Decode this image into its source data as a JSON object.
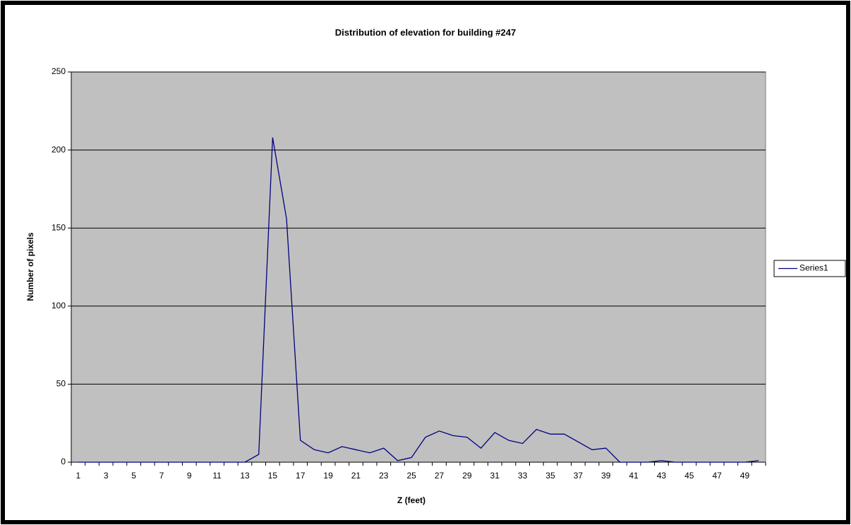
{
  "chart_data": {
    "type": "line",
    "title": "Distribution of elevation  for building #247",
    "x_label": "Z (feet)",
    "y_label": "Number of pixels",
    "categories": [
      1,
      null,
      3,
      null,
      5,
      null,
      7,
      null,
      9,
      null,
      11,
      null,
      13,
      null,
      15,
      null,
      17,
      null,
      19,
      null,
      21,
      null,
      23,
      null,
      25,
      null,
      27,
      null,
      29,
      null,
      31,
      null,
      33,
      null,
      35,
      null,
      37,
      null,
      39,
      null,
      41,
      null,
      43,
      null,
      45,
      null,
      47,
      null,
      49,
      null
    ],
    "series": [
      {
        "name": "Series1",
        "color": "#000080",
        "values": [
          0,
          0,
          0,
          0,
          0,
          0,
          0,
          0,
          0,
          0,
          0,
          0,
          0,
          5,
          208,
          156,
          14,
          8,
          6,
          10,
          8,
          6,
          9,
          1,
          3,
          16,
          20,
          17,
          16,
          9,
          19,
          14,
          12,
          21,
          18,
          18,
          13,
          8,
          9,
          0,
          0,
          0,
          1,
          0,
          0,
          0,
          0,
          0,
          0,
          1
        ]
      }
    ],
    "ylim": [
      0,
      250
    ],
    "yticks": [
      0,
      50,
      100,
      150,
      200,
      250
    ],
    "grid": true,
    "legend": "right",
    "plot_background": "#c0c0c0"
  }
}
